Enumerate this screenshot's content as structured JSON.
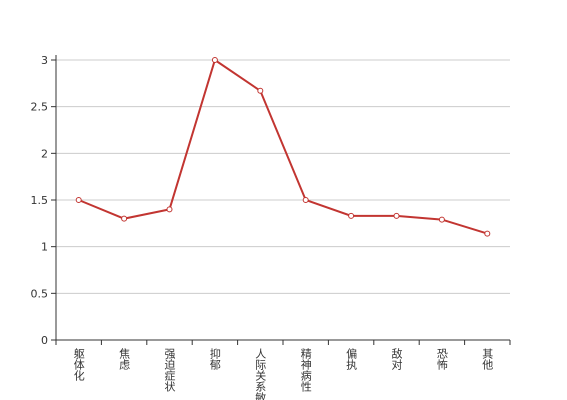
{
  "chart_data": {
    "type": "line",
    "categories": [
      "躯体化",
      "焦虑",
      "强迫症状",
      "抑郁",
      "人际关系敏感",
      "精神病性",
      "偏执",
      "敌对",
      "恐怖",
      "其他"
    ],
    "series": [
      {
        "color": "#c23531",
        "values": [
          1.5,
          1.3,
          1.4,
          3,
          2.67,
          1.5,
          1.33,
          1.33,
          1.29,
          1.14
        ]
      }
    ],
    "ylim": [
      0,
      3
    ],
    "yticks": [
      0,
      0.5,
      1,
      1.5,
      2,
      2.5,
      3
    ],
    "grid": true
  }
}
